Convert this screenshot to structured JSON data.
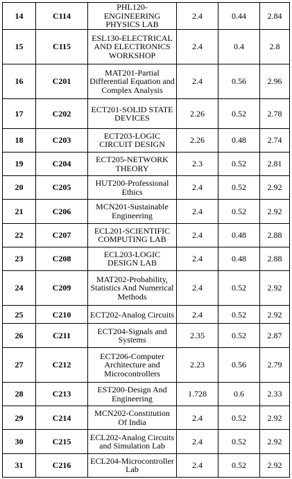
{
  "table": {
    "rows": [
      {
        "sno": "14",
        "code": "C114",
        "course": "PHL120-ENGINEERING PHYSICS LAB",
        "v1": "2.4",
        "v2": "0.44",
        "v3": "2.84"
      },
      {
        "sno": "15",
        "code": "C115",
        "course": "ESL130-ELECTRICAL AND ELECTRONICS WORKSHOP",
        "v1": "2.4",
        "v2": "0.4",
        "v3": "2.8"
      },
      {
        "sno": "16",
        "code": "C201",
        "course": "MAT201-Partial Differential Equation and Complex Analysis",
        "v1": "2.4",
        "v2": "0.56",
        "v3": "2.96"
      },
      {
        "sno": "17",
        "code": "C202",
        "course": "ECT201-SOLID STATE DEVICES",
        "v1": "2.26",
        "v2": "0.52",
        "v3": "2.78"
      },
      {
        "sno": "18",
        "code": "C203",
        "course": "ECT203-LOGIC CIRCUIT DESIGN",
        "v1": "2.26",
        "v2": "0.48",
        "v3": "2.74"
      },
      {
        "sno": "19",
        "code": "C204",
        "course": "ECT205-NETWORK THEORY",
        "v1": "2.3",
        "v2": "0.52",
        "v3": "2.81"
      },
      {
        "sno": "20",
        "code": "C205",
        "course": "HUT200-Professional Ethics",
        "v1": "2.4",
        "v2": "0.52",
        "v3": "2.92"
      },
      {
        "sno": "21",
        "code": "C206",
        "course": "MCN201-Sustainable Engineering",
        "v1": "2.4",
        "v2": "0.52",
        "v3": "2.92"
      },
      {
        "sno": "22",
        "code": "C207",
        "course": "ECL201-SCIENTIFIC COMPUTING LAB",
        "v1": "2.4",
        "v2": "0.48",
        "v3": "2.88"
      },
      {
        "sno": "23",
        "code": "C208",
        "course": "ECL203-LOGIC DESIGN LAB",
        "v1": "2.4",
        "v2": "0.48",
        "v3": "2.88"
      },
      {
        "sno": "24",
        "code": "C209",
        "course": "MAT202-Probability, Statistics And Numerical Methods",
        "v1": "2.4",
        "v2": "0.52",
        "v3": "2.92"
      },
      {
        "sno": "25",
        "code": "C210",
        "course": "ECT202-Analog Circuits",
        "v1": "2.4",
        "v2": "0.52",
        "v3": "2.92"
      },
      {
        "sno": "26",
        "code": "C211",
        "course": "ECT204-Signals and Systems",
        "v1": "2.35",
        "v2": "0.52",
        "v3": "2.87"
      },
      {
        "sno": "27",
        "code": "C212",
        "course": "ECT206-Computer Architecture and Microcontrollers",
        "v1": "2.23",
        "v2": "0.56",
        "v3": "2.79"
      },
      {
        "sno": "28",
        "code": "C213",
        "course": "EST200-Design And Engineering",
        "v1": "1.728",
        "v2": "0.6",
        "v3": "2.33"
      },
      {
        "sno": "29",
        "code": "C214",
        "course": "MCN202-Constitution Of India",
        "v1": "2.4",
        "v2": "0.52",
        "v3": "2.92"
      },
      {
        "sno": "30",
        "code": "C215",
        "course": "ECL202-Analog Circuits and Simulation Lab",
        "v1": "2.4",
        "v2": "0.52",
        "v3": "2.92"
      },
      {
        "sno": "31",
        "code": "C216",
        "course": "ECL204-Microcontroller Lab",
        "v1": "2.4",
        "v2": "0.52",
        "v3": "2.92"
      }
    ]
  }
}
